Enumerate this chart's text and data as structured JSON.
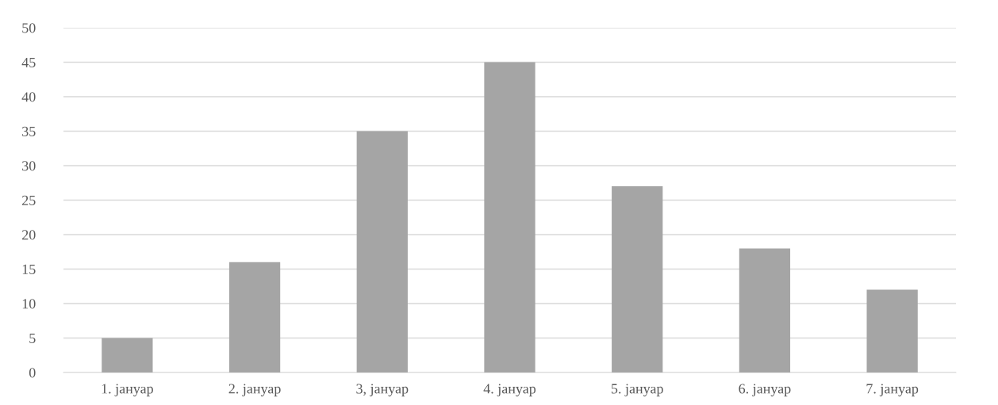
{
  "chart_data": {
    "type": "bar",
    "categories": [
      "1. јануар",
      "2. јануар",
      "3, јануар",
      "4. јануар",
      "5. јануар",
      "6. јануар",
      "7. јануар"
    ],
    "values": [
      5,
      16,
      35,
      45,
      27,
      18,
      12
    ],
    "color": "#a5a5a5",
    "ylim": [
      0,
      50
    ],
    "yticks": [
      0,
      5,
      10,
      15,
      20,
      25,
      30,
      35,
      40,
      45,
      50
    ],
    "grid": "y",
    "legend": false
  }
}
